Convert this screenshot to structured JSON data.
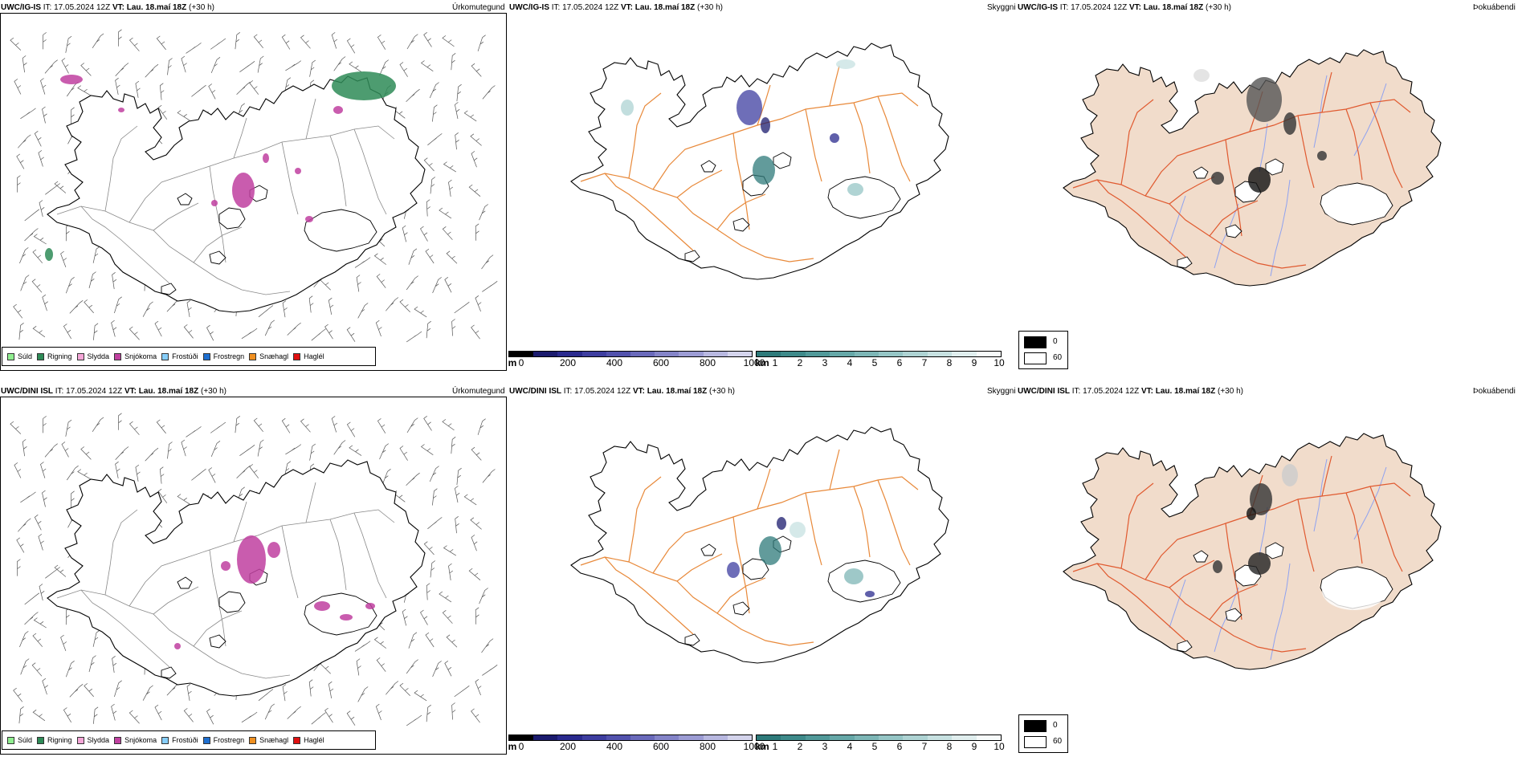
{
  "rows": [
    {
      "model": "UWC/IG-IS",
      "it_label": "IT:",
      "it_value": "17.05.2024 12Z",
      "vt_label": "VT:",
      "vt_value": "Lau. 18.maí 18Z",
      "lead": "(+30 h)"
    },
    {
      "model": "UWC/DINI ISL",
      "it_label": "IT:",
      "it_value": "17.05.2024 12Z",
      "vt_label": "VT:",
      "vt_value": "Lau. 18.maí 18Z",
      "lead": "(+30 h)"
    }
  ],
  "field_titles": {
    "precip_type": "Úrkomutegund",
    "visibility": "Skyggni",
    "fog": "Þokuábendi"
  },
  "precip_legend": [
    {
      "label": "Súld",
      "color": "#90ee90"
    },
    {
      "label": "Rigning",
      "color": "#2e8b57"
    },
    {
      "label": "Slydda",
      "color": "#f4a6d7"
    },
    {
      "label": "Snjókoma",
      "color": "#c040a0"
    },
    {
      "label": "Frostúði",
      "color": "#87cefa"
    },
    {
      "label": "Frostregn",
      "color": "#1e6fd0"
    },
    {
      "label": "Snæhagl",
      "color": "#f09020"
    },
    {
      "label": "Haglél",
      "color": "#e01010"
    }
  ],
  "visibility_scale_m": {
    "unit": "m",
    "ticks": [
      "0",
      "200",
      "400",
      "600",
      "800",
      "1000"
    ],
    "colors": [
      "#000000",
      "#1b1b6e",
      "#2a2a8e",
      "#3e3ea0",
      "#5252ad",
      "#6a6abb",
      "#8484c8",
      "#9c9cd4",
      "#b8b8e0",
      "#d4d4ec"
    ]
  },
  "visibility_scale_km": {
    "unit": "km",
    "ticks": [
      "1",
      "2",
      "3",
      "4",
      "5",
      "6",
      "7",
      "8",
      "9",
      "10"
    ],
    "colors": [
      "#2e7a7a",
      "#3e8a8a",
      "#519999",
      "#66a8a8",
      "#7db6b6",
      "#95c5c5",
      "#aed3d3",
      "#c7e1e1",
      "#e0eeee",
      "#f7fbfb"
    ]
  },
  "fog_legend": [
    {
      "label": "0",
      "color": "#000000"
    },
    {
      "label": "60",
      "color": "#ffffff"
    }
  ],
  "colors": {
    "land_fog": "#f1dccb",
    "roads": "#e8893a",
    "roads_fog": "#e05a30",
    "rivers": "#8fa2f0",
    "coast": "#000000",
    "snow_purple": "#c040a0",
    "rain_green": "#2e8b57"
  }
}
